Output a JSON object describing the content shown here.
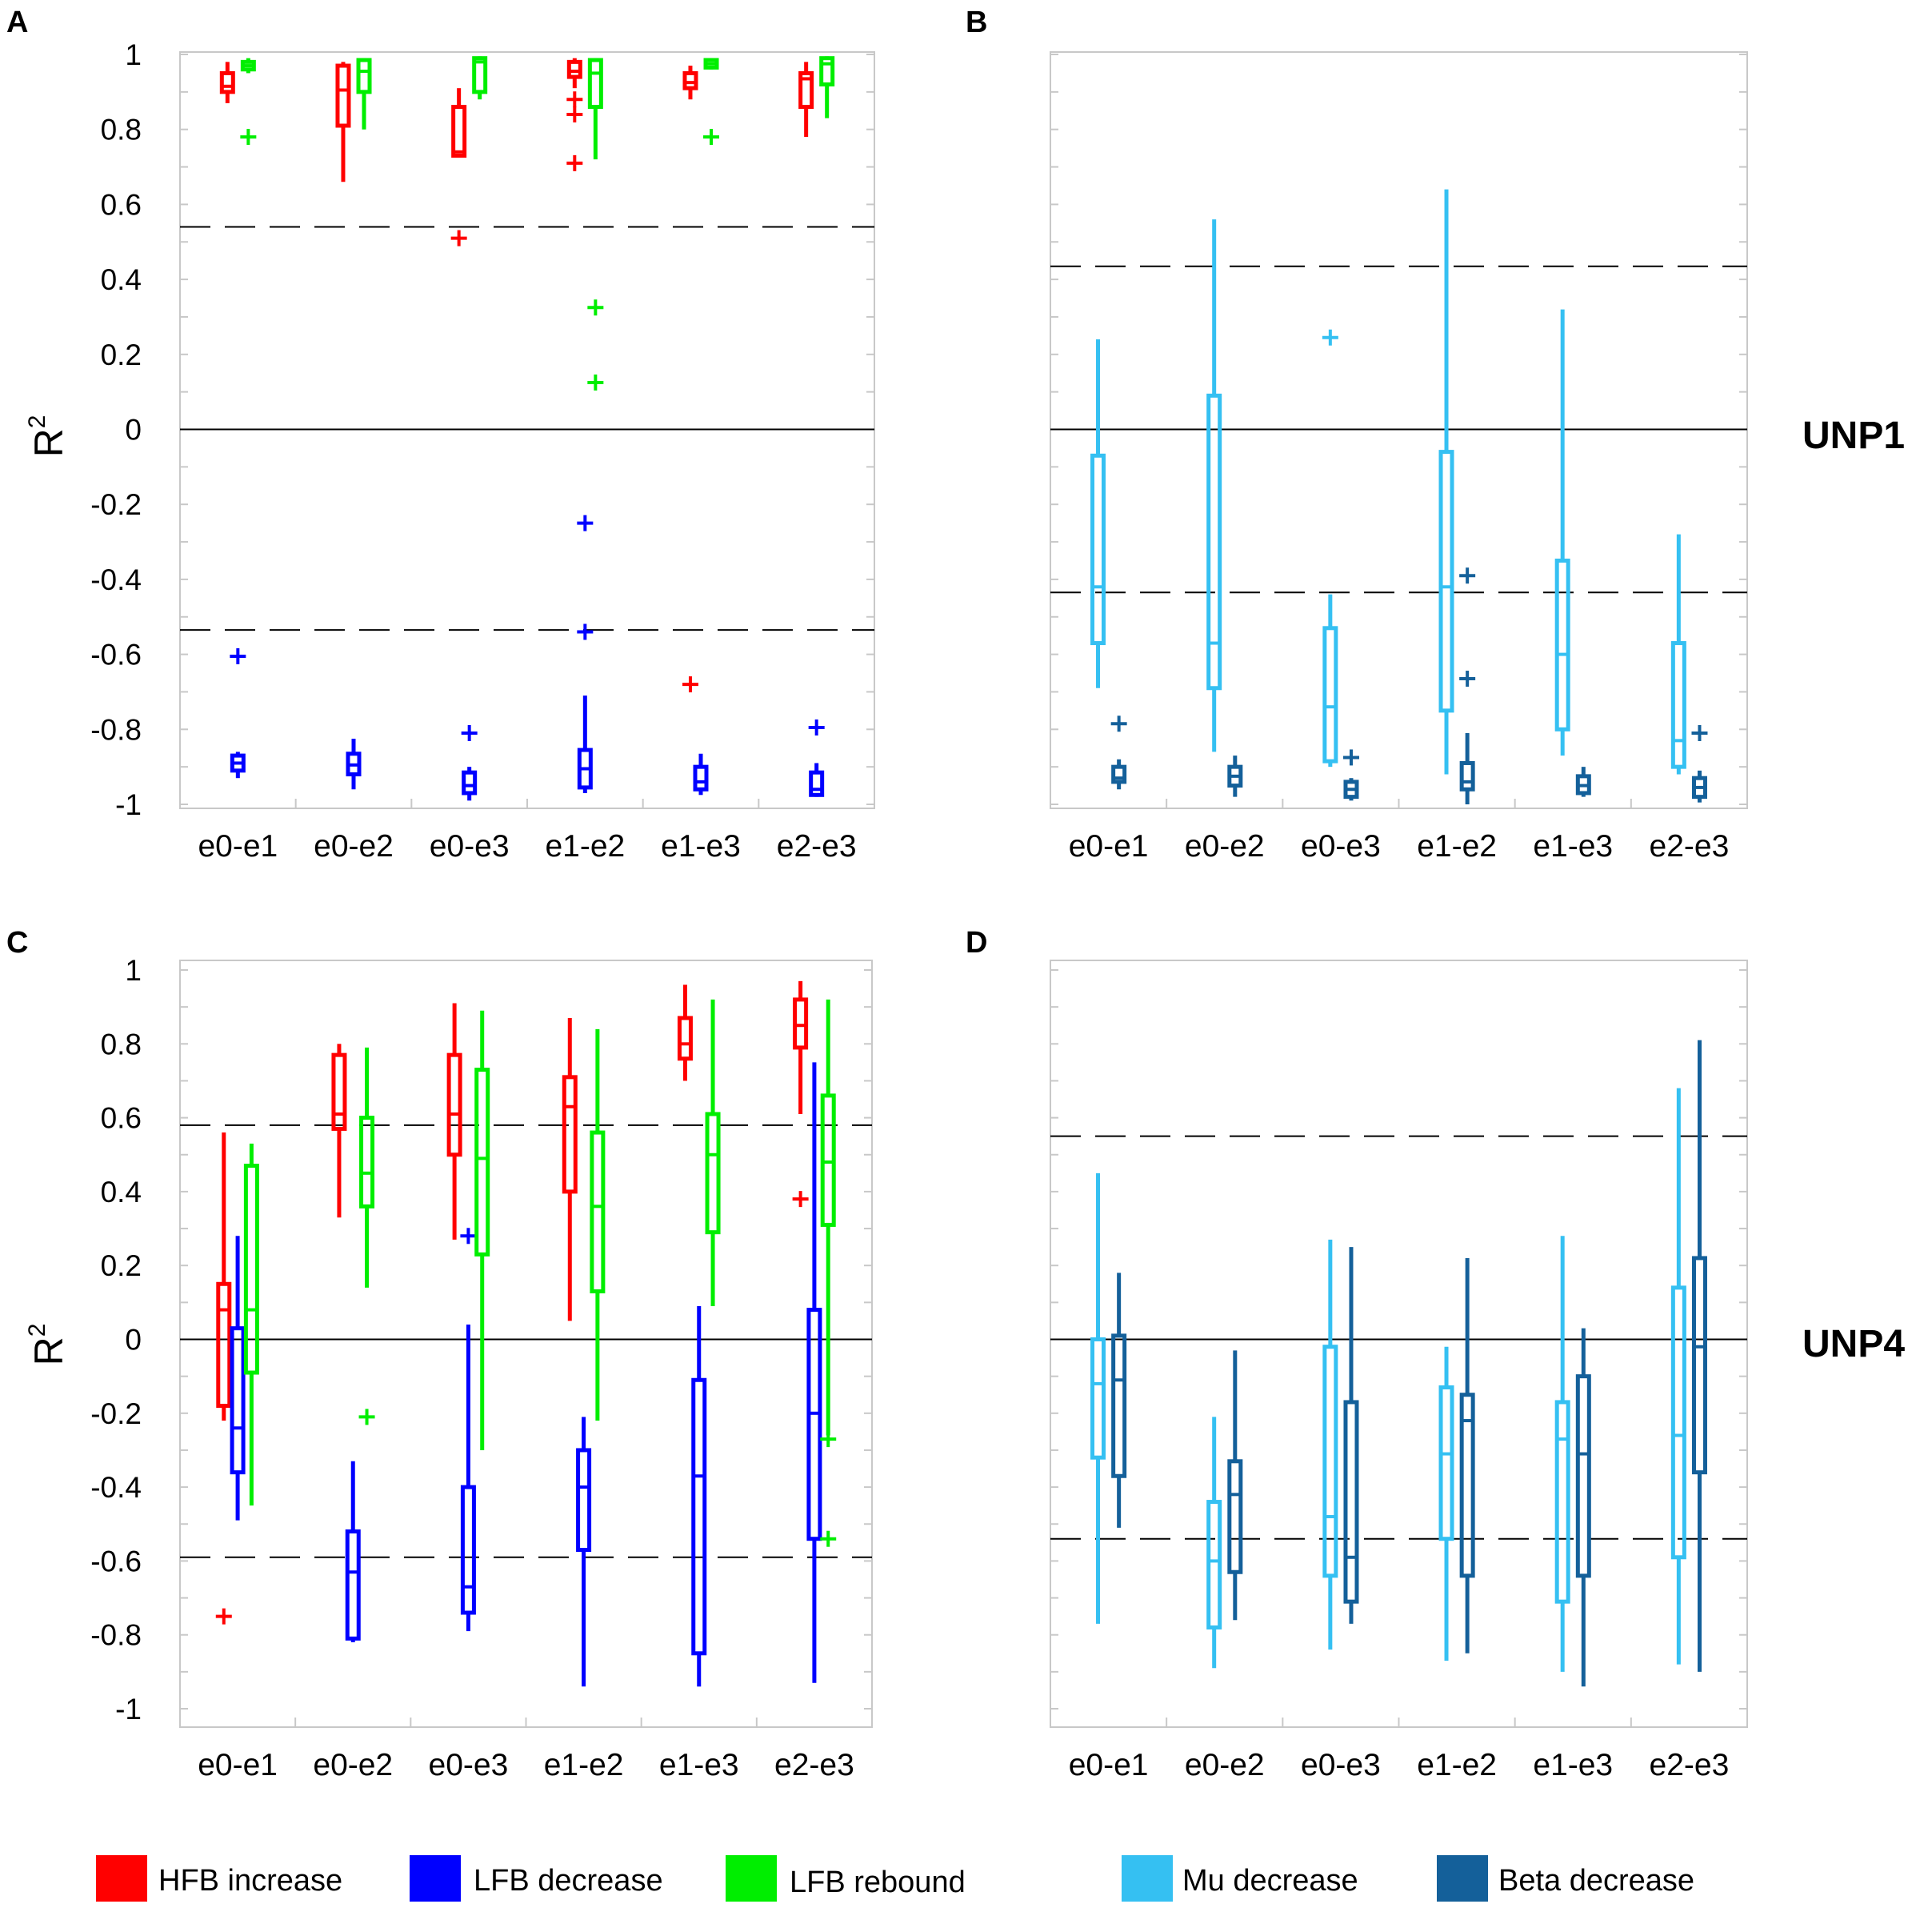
{
  "legend": [
    {
      "label": "HFB increase",
      "color": "#ff0000"
    },
    {
      "label": "LFB decrease",
      "color": "#0000ff"
    },
    {
      "label": "LFB rebound",
      "color": "#00ee00"
    },
    {
      "label": "Mu decrease",
      "color": "#35c0f2"
    },
    {
      "label": "Beta decrease",
      "color": "#14609a"
    }
  ],
  "chart_data": [
    {
      "panel": "A",
      "type": "box",
      "ylabel": "R",
      "ylabel_sup": "2",
      "side_label": "",
      "categories": [
        "e0-e1",
        "e0-e2",
        "e0-e3",
        "e1-e2",
        "e1-e3",
        "e2-e3"
      ],
      "ylim": [
        -1,
        1
      ],
      "show_tick_labels": true,
      "yticks": [
        1,
        0.8,
        0.6,
        0.4,
        0.2,
        0,
        -0.2,
        -0.4,
        -0.6,
        -0.8,
        -1
      ],
      "ytick_labels": [
        "1",
        "0.8",
        "0.6",
        "0.4",
        "0.2",
        "0",
        "-0.2",
        "-0.4",
        "-0.6",
        "-0.8",
        "-1"
      ],
      "dashed_lines": [
        0.54,
        -0.535
      ],
      "series": [
        {
          "name": "HFB increase",
          "color": "#ff0000",
          "offset": -0.09,
          "boxes": [
            {
              "whislo": 0.87,
              "q1": 0.9,
              "med": 0.915,
              "q3": 0.95,
              "whishi": 0.98,
              "outliers": []
            },
            {
              "whislo": 0.66,
              "q1": 0.81,
              "med": 0.905,
              "q3": 0.97,
              "whishi": 0.98,
              "outliers": []
            },
            {
              "whislo": 0.73,
              "q1": 0.73,
              "med": 0.74,
              "q3": 0.86,
              "whishi": 0.91,
              "outliers": [
                0.51
              ]
            },
            {
              "whislo": 0.91,
              "q1": 0.94,
              "med": 0.955,
              "q3": 0.98,
              "whishi": 0.99,
              "outliers": [
                0.88,
                0.84,
                0.71
              ]
            },
            {
              "whislo": 0.88,
              "q1": 0.91,
              "med": 0.925,
              "q3": 0.95,
              "whishi": 0.97,
              "outliers": [
                -0.68
              ]
            },
            {
              "whislo": 0.78,
              "q1": 0.86,
              "med": 0.935,
              "q3": 0.95,
              "whishi": 0.98,
              "outliers": []
            }
          ]
        },
        {
          "name": "LFB decrease",
          "color": "#0000ff",
          "offset": 0,
          "boxes": [
            {
              "whislo": -0.93,
              "q1": -0.91,
              "med": -0.89,
              "q3": -0.87,
              "whishi": -0.86,
              "outliers": [
                -0.605
              ]
            },
            {
              "whislo": -0.96,
              "q1": -0.92,
              "med": -0.895,
              "q3": -0.865,
              "whishi": -0.825,
              "outliers": []
            },
            {
              "whislo": -0.99,
              "q1": -0.97,
              "med": -0.95,
              "q3": -0.915,
              "whishi": -0.9,
              "outliers": [
                -0.81
              ]
            },
            {
              "whislo": -0.97,
              "q1": -0.955,
              "med": -0.905,
              "q3": -0.855,
              "whishi": -0.71,
              "outliers": [
                -0.25,
                -0.54
              ]
            },
            {
              "whislo": -0.975,
              "q1": -0.96,
              "med": -0.94,
              "q3": -0.9,
              "whishi": -0.865,
              "outliers": []
            },
            {
              "whislo": -0.98,
              "q1": -0.975,
              "med": -0.96,
              "q3": -0.915,
              "whishi": -0.89,
              "outliers": [
                -0.795
              ]
            }
          ]
        },
        {
          "name": "LFB rebound",
          "color": "#00ee00",
          "offset": 0.09,
          "boxes": [
            {
              "whislo": 0.95,
              "q1": 0.96,
              "med": 0.97,
              "q3": 0.98,
              "whishi": 0.99,
              "outliers": [
                0.78
              ]
            },
            {
              "whislo": 0.8,
              "q1": 0.9,
              "med": 0.955,
              "q3": 0.985,
              "whishi": 0.99,
              "outliers": []
            },
            {
              "whislo": 0.88,
              "q1": 0.9,
              "med": 0.98,
              "q3": 0.99,
              "whishi": 0.995,
              "outliers": []
            },
            {
              "whislo": 0.72,
              "q1": 0.86,
              "med": 0.95,
              "q3": 0.985,
              "whishi": 0.99,
              "outliers": [
                0.325,
                0.125
              ]
            },
            {
              "whislo": 0.96,
              "q1": 0.965,
              "med": 0.975,
              "q3": 0.985,
              "whishi": 0.99,
              "outliers": [
                0.78
              ]
            },
            {
              "whislo": 0.83,
              "q1": 0.92,
              "med": 0.975,
              "q3": 0.99,
              "whishi": 0.995,
              "outliers": []
            }
          ]
        }
      ]
    },
    {
      "panel": "B",
      "type": "box",
      "ylabel": "",
      "ylabel_sup": "",
      "side_label": "UNP1",
      "categories": [
        "e0-e1",
        "e0-e2",
        "e0-e3",
        "e1-e2",
        "e1-e3",
        "e2-e3"
      ],
      "ylim": [
        -1,
        1
      ],
      "show_tick_labels": false,
      "yticks": [
        1,
        0.8,
        0.6,
        0.4,
        0.2,
        0,
        -0.2,
        -0.4,
        -0.6,
        -0.8,
        -1
      ],
      "ytick_labels": [],
      "dashed_lines": [
        0.435,
        -0.435
      ],
      "series": [
        {
          "name": "Mu decrease",
          "color": "#35c0f2",
          "offset": -0.09,
          "boxes": [
            {
              "whislo": -0.69,
              "q1": -0.57,
              "med": -0.42,
              "q3": -0.07,
              "whishi": 0.24,
              "outliers": []
            },
            {
              "whislo": -0.86,
              "q1": -0.69,
              "med": -0.57,
              "q3": 0.09,
              "whishi": 0.56,
              "outliers": []
            },
            {
              "whislo": -0.9,
              "q1": -0.885,
              "med": -0.74,
              "q3": -0.53,
              "whishi": -0.44,
              "outliers": [
                0.245
              ]
            },
            {
              "whislo": -0.92,
              "q1": -0.75,
              "med": -0.42,
              "q3": -0.06,
              "whishi": 0.64,
              "outliers": []
            },
            {
              "whislo": -0.87,
              "q1": -0.8,
              "med": -0.6,
              "q3": -0.35,
              "whishi": 0.32,
              "outliers": []
            },
            {
              "whislo": -0.92,
              "q1": -0.9,
              "med": -0.83,
              "q3": -0.57,
              "whishi": -0.28,
              "outliers": []
            }
          ]
        },
        {
          "name": "Beta decrease",
          "color": "#14609a",
          "offset": 0.09,
          "boxes": [
            {
              "whislo": -0.96,
              "q1": -0.94,
              "med": -0.93,
              "q3": -0.9,
              "whishi": -0.88,
              "outliers": [
                -0.785
              ]
            },
            {
              "whislo": -0.98,
              "q1": -0.95,
              "med": -0.925,
              "q3": -0.9,
              "whishi": -0.87,
              "outliers": []
            },
            {
              "whislo": -0.99,
              "q1": -0.98,
              "med": -0.96,
              "q3": -0.94,
              "whishi": -0.93,
              "outliers": [
                -0.875
              ]
            },
            {
              "whislo": -1.0,
              "q1": -0.96,
              "med": -0.94,
              "q3": -0.89,
              "whishi": -0.81,
              "outliers": [
                -0.39,
                -0.665
              ]
            },
            {
              "whislo": -0.98,
              "q1": -0.97,
              "med": -0.95,
              "q3": -0.925,
              "whishi": -0.9,
              "outliers": []
            },
            {
              "whislo": -0.995,
              "q1": -0.98,
              "med": -0.955,
              "q3": -0.93,
              "whishi": -0.91,
              "outliers": [
                -0.81
              ]
            }
          ]
        }
      ]
    },
    {
      "panel": "C",
      "type": "box",
      "ylabel": "R",
      "ylabel_sup": "2",
      "side_label": "",
      "categories": [
        "e0-e1",
        "e0-e2",
        "e0-e3",
        "e1-e2",
        "e1-e3",
        "e2-e3"
      ],
      "ylim": [
        -1,
        1
      ],
      "show_tick_labels": true,
      "yticks": [
        1,
        0.8,
        0.6,
        0.4,
        0.2,
        0,
        -0.2,
        -0.4,
        -0.6,
        -0.8,
        -1
      ],
      "ytick_labels": [
        "1",
        "0.8",
        "0.6",
        "0.4",
        "0.2",
        "0",
        "-0.2",
        "-0.4",
        "-0.6",
        "-0.8",
        "-1"
      ],
      "dashed_lines": [
        0.58,
        -0.59
      ],
      "series": [
        {
          "name": "HFB increase",
          "color": "#ff0000",
          "offset": -0.12,
          "boxes": [
            {
              "whislo": -0.22,
              "q1": -0.18,
              "med": 0.08,
              "q3": 0.15,
              "whishi": 0.56,
              "outliers": [
                -0.75
              ]
            },
            {
              "whislo": 0.33,
              "q1": 0.57,
              "med": 0.61,
              "q3": 0.77,
              "whishi": 0.8,
              "outliers": []
            },
            {
              "whislo": 0.27,
              "q1": 0.5,
              "med": 0.61,
              "q3": 0.77,
              "whishi": 0.91,
              "outliers": []
            },
            {
              "whislo": 0.05,
              "q1": 0.4,
              "med": 0.63,
              "q3": 0.71,
              "whishi": 0.87,
              "outliers": []
            },
            {
              "whislo": 0.7,
              "q1": 0.76,
              "med": 0.8,
              "q3": 0.87,
              "whishi": 0.96,
              "outliers": []
            },
            {
              "whislo": 0.61,
              "q1": 0.79,
              "med": 0.85,
              "q3": 0.92,
              "whishi": 0.97,
              "outliers": [
                0.38
              ]
            }
          ]
        },
        {
          "name": "LFB decrease",
          "color": "#0000ff",
          "offset": 0,
          "boxes": [
            {
              "whislo": -0.49,
              "q1": -0.36,
              "med": -0.24,
              "q3": 0.03,
              "whishi": 0.28,
              "outliers": []
            },
            {
              "whislo": -0.82,
              "q1": -0.81,
              "med": -0.63,
              "q3": -0.52,
              "whishi": -0.33,
              "outliers": []
            },
            {
              "whislo": -0.79,
              "q1": -0.74,
              "med": -0.67,
              "q3": -0.4,
              "whishi": 0.04,
              "outliers": [
                0.28
              ]
            },
            {
              "whislo": -0.94,
              "q1": -0.57,
              "med": -0.4,
              "q3": -0.3,
              "whishi": -0.21,
              "outliers": []
            },
            {
              "whislo": -0.94,
              "q1": -0.85,
              "med": -0.37,
              "q3": -0.11,
              "whishi": 0.09,
              "outliers": []
            },
            {
              "whislo": -0.93,
              "q1": -0.54,
              "med": -0.2,
              "q3": 0.08,
              "whishi": 0.75,
              "outliers": []
            }
          ]
        },
        {
          "name": "LFB rebound",
          "color": "#00ee00",
          "offset": 0.12,
          "boxes": [
            {
              "whislo": -0.45,
              "q1": -0.09,
              "med": 0.08,
              "q3": 0.47,
              "whishi": 0.53,
              "outliers": []
            },
            {
              "whislo": 0.14,
              "q1": 0.36,
              "med": 0.45,
              "q3": 0.6,
              "whishi": 0.79,
              "outliers": [
                -0.21
              ]
            },
            {
              "whislo": -0.3,
              "q1": 0.23,
              "med": 0.49,
              "q3": 0.73,
              "whishi": 0.89,
              "outliers": []
            },
            {
              "whislo": -0.22,
              "q1": 0.13,
              "med": 0.36,
              "q3": 0.56,
              "whishi": 0.84,
              "outliers": []
            },
            {
              "whislo": 0.09,
              "q1": 0.29,
              "med": 0.5,
              "q3": 0.61,
              "whishi": 0.92,
              "outliers": []
            },
            {
              "whislo": -0.26,
              "q1": 0.31,
              "med": 0.48,
              "q3": 0.66,
              "whishi": 0.92,
              "outliers": [
                -0.27,
                -0.54
              ]
            }
          ]
        }
      ]
    },
    {
      "panel": "D",
      "type": "box",
      "ylabel": "",
      "ylabel_sup": "",
      "side_label": "UNP4",
      "categories": [
        "e0-e1",
        "e0-e2",
        "e0-e3",
        "e1-e2",
        "e1-e3",
        "e2-e3"
      ],
      "ylim": [
        -1,
        1
      ],
      "show_tick_labels": false,
      "yticks": [
        1,
        0.8,
        0.6,
        0.4,
        0.2,
        0,
        -0.2,
        -0.4,
        -0.6,
        -0.8,
        -1
      ],
      "ytick_labels": [],
      "dashed_lines": [
        0.55,
        -0.54
      ],
      "series": [
        {
          "name": "Mu decrease",
          "color": "#35c0f2",
          "offset": -0.09,
          "boxes": [
            {
              "whislo": -0.77,
              "q1": -0.32,
              "med": -0.12,
              "q3": 0.0,
              "whishi": 0.45,
              "outliers": []
            },
            {
              "whislo": -0.89,
              "q1": -0.78,
              "med": -0.6,
              "q3": -0.44,
              "whishi": -0.21,
              "outliers": []
            },
            {
              "whislo": -0.84,
              "q1": -0.64,
              "med": -0.48,
              "q3": -0.02,
              "whishi": 0.27,
              "outliers": []
            },
            {
              "whislo": -0.87,
              "q1": -0.54,
              "med": -0.31,
              "q3": -0.13,
              "whishi": -0.02,
              "outliers": []
            },
            {
              "whislo": -0.9,
              "q1": -0.71,
              "med": -0.27,
              "q3": -0.17,
              "whishi": 0.28,
              "outliers": []
            },
            {
              "whislo": -0.88,
              "q1": -0.59,
              "med": -0.26,
              "q3": 0.14,
              "whishi": 0.68,
              "outliers": []
            }
          ]
        },
        {
          "name": "Beta decrease",
          "color": "#14609a",
          "offset": 0.09,
          "boxes": [
            {
              "whislo": -0.51,
              "q1": -0.37,
              "med": -0.11,
              "q3": 0.01,
              "whishi": 0.18,
              "outliers": []
            },
            {
              "whislo": -0.76,
              "q1": -0.63,
              "med": -0.42,
              "q3": -0.33,
              "whishi": -0.03,
              "outliers": []
            },
            {
              "whislo": -0.77,
              "q1": -0.71,
              "med": -0.59,
              "q3": -0.17,
              "whishi": 0.25,
              "outliers": []
            },
            {
              "whislo": -0.85,
              "q1": -0.64,
              "med": -0.22,
              "q3": -0.15,
              "whishi": 0.22,
              "outliers": []
            },
            {
              "whislo": -0.94,
              "q1": -0.64,
              "med": -0.31,
              "q3": -0.1,
              "whishi": 0.03,
              "outliers": []
            },
            {
              "whislo": -0.9,
              "q1": -0.36,
              "med": -0.02,
              "q3": 0.22,
              "whishi": 0.81,
              "outliers": []
            }
          ]
        }
      ]
    }
  ]
}
